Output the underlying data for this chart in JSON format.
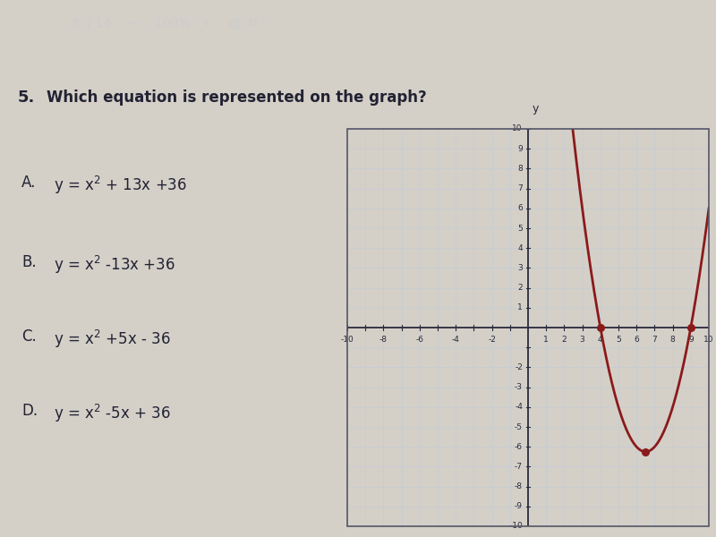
{
  "question_num": "5.",
  "question_text": "Which equation is represented on the graph?",
  "choices_letters": [
    "A.",
    "B.",
    "C.",
    "D."
  ],
  "choices_eqs": [
    "y = x² + 13x +36",
    "y = x² -13x +36",
    "y = x² +5x - 36",
    "y = x² -5x + 36"
  ],
  "curve_color": "#8B1A1A",
  "dot_color": "#8B1A1A",
  "grid_color": "#c8ccd5",
  "axis_color": "#2a2a3a",
  "tick_label_color": "#2a2a3a",
  "page_bg": "#c8c8c8",
  "left_bg": "#d4d0c8",
  "graph_bg": "#e8e4dc",
  "graph_border": "#555566",
  "header_bg": "#2a2a2a",
  "header_text_color": "#cccccc",
  "text_color": "#222233",
  "white_box_color": "#e8e4dc",
  "xlim": [
    -10,
    10
  ],
  "ylim": [
    -10,
    10
  ],
  "roots": [
    4,
    9
  ],
  "vertex_x": 6.5,
  "vertex_y": -6.25,
  "dot_points": [
    [
      4,
      0
    ],
    [
      9,
      0
    ],
    [
      6.5,
      -6.25
    ]
  ]
}
